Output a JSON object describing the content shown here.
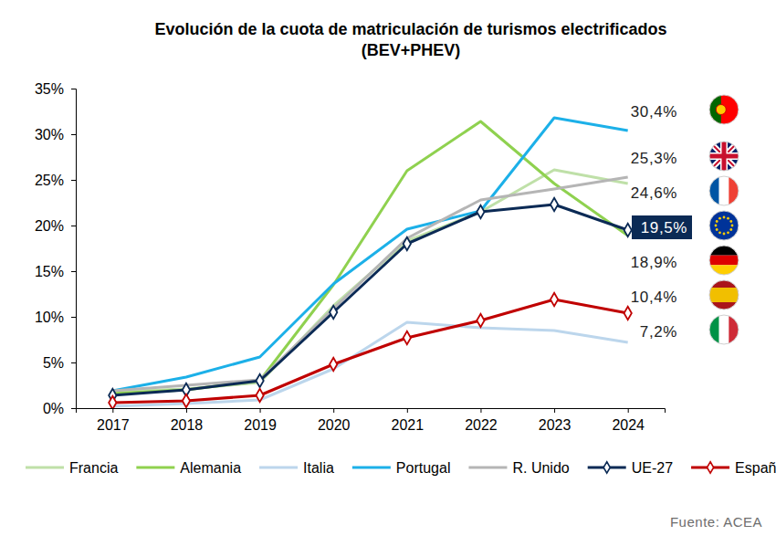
{
  "chart_data": {
    "type": "line",
    "title": "Evolución de la cuota de matriculación de turismos electrificados\n(BEV+PHEV)",
    "source": "Fuente: ACEA",
    "categories": [
      "2017",
      "2018",
      "2019",
      "2020",
      "2021",
      "2022",
      "2023",
      "2024"
    ],
    "ylim": [
      0,
      35
    ],
    "yticks": [
      {
        "value": 0,
        "label": "0%"
      },
      {
        "value": 5,
        "label": "5%"
      },
      {
        "value": 10,
        "label": "10%"
      },
      {
        "value": 15,
        "label": "15%"
      },
      {
        "value": 20,
        "label": "20%"
      },
      {
        "value": 25,
        "label": "25%"
      },
      {
        "value": 30,
        "label": "30%"
      },
      {
        "value": 35,
        "label": "35%"
      }
    ],
    "grid": false,
    "legend": "bottom",
    "data_labels": true,
    "series": [
      {
        "name": "Francia",
        "color": "#bfe0a8",
        "marker": "none",
        "line_style": "solid",
        "values": [
          1.8,
          2.1,
          2.8,
          11.2,
          18.3,
          21.5,
          26.1,
          24.6
        ],
        "value_labels": [
          null,
          null,
          null,
          null,
          null,
          null,
          null,
          "24,6%"
        ]
      },
      {
        "name": "Alemania",
        "color": "#8fd14f",
        "marker": "none",
        "line_style": "solid",
        "values": [
          1.6,
          2.0,
          3.0,
          13.5,
          26.0,
          31.4,
          24.6,
          18.9
        ],
        "value_labels": [
          null,
          null,
          null,
          null,
          null,
          null,
          null,
          "18,9%"
        ]
      },
      {
        "name": "Italia",
        "color": "#bcd6ec",
        "marker": "none",
        "line_style": "solid",
        "values": [
          0.2,
          0.5,
          0.9,
          4.3,
          9.4,
          8.8,
          8.5,
          7.2
        ],
        "value_labels": [
          null,
          null,
          null,
          null,
          null,
          null,
          null,
          "7,2%"
        ]
      },
      {
        "name": "Portugal",
        "color": "#1cb0e8",
        "marker": "none",
        "line_style": "solid",
        "values": [
          1.9,
          3.4,
          5.6,
          13.6,
          19.6,
          21.6,
          31.8,
          30.4
        ],
        "value_labels": [
          null,
          null,
          null,
          null,
          null,
          null,
          null,
          "30,4%"
        ]
      },
      {
        "name": "R. Unido",
        "color": "#b5b5b5",
        "marker": "none",
        "line_style": "solid",
        "values": [
          1.9,
          2.5,
          3.1,
          10.9,
          18.6,
          22.8,
          24.0,
          25.3
        ],
        "value_labels": [
          null,
          null,
          null,
          null,
          null,
          null,
          null,
          "25,3%"
        ]
      },
      {
        "name": "UE-27",
        "color": "#0b2a55",
        "marker": "diamond",
        "line_style": "solid",
        "values": [
          1.4,
          2.0,
          3.0,
          10.5,
          18.0,
          21.5,
          22.3,
          19.5
        ],
        "value_labels": [
          null,
          null,
          null,
          null,
          null,
          null,
          null,
          "19,5%"
        ]
      },
      {
        "name": "España",
        "color": "#c00000",
        "marker": "diamond",
        "line_style": "solid",
        "values": [
          0.6,
          0.8,
          1.4,
          4.8,
          7.7,
          9.6,
          11.9,
          10.4
        ],
        "value_labels": [
          null,
          null,
          null,
          null,
          null,
          null,
          null,
          "10,4%"
        ]
      }
    ]
  }
}
